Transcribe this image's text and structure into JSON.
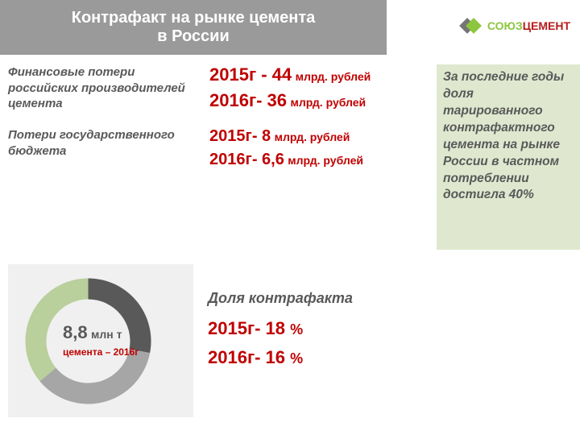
{
  "header": {
    "line1": "Контрафакт на рынке цемента",
    "line2": "в России"
  },
  "logo": {
    "name": "СОЮЗ",
    "name2": "ЦЕМЕНТ"
  },
  "sections": {
    "producers": {
      "label": "Финансовые потери российских производителей цемента",
      "y2015": "2015г - 44",
      "u2015": "млрд. рублей",
      "y2016": "2016г- 36",
      "u2016": "млрд. рублей"
    },
    "budget": {
      "label": "Потери государственного бюджета",
      "y2015": "2015г- 8",
      "u2015": "млрд. рублей",
      "y2016": "2016г- 6,6",
      "u2016": "млрд. рублей"
    }
  },
  "sidebar_text": "За последние годы  доля тарированного контрафактного цемента на рынке России  в частном потреблении достигла 40%",
  "share": {
    "title": "Доля контрафакта",
    "y2015": "2015г- 18",
    "p1": "%",
    "y2016": "2016г- 16",
    "p2": "%"
  },
  "donut": {
    "value": "8,8",
    "unit": "млн т",
    "subtitle": "цемента – 2016г",
    "segments": [
      {
        "color": "#595959",
        "fraction": 0.28
      },
      {
        "color": "#a6a6a6",
        "fraction": 0.36
      },
      {
        "color": "#b9cf9c",
        "fraction": 0.36
      }
    ],
    "ring_outer_r": 78,
    "ring_inner_r": 52,
    "bg": "#f0f0f0"
  },
  "colors": {
    "accent": "#c00000",
    "gray": "#595959",
    "header_bg": "#9a9a9a",
    "sidebar_bg": "#dfe8cf"
  }
}
